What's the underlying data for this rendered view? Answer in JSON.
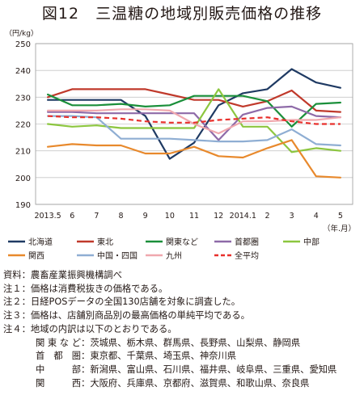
{
  "title": "図12　三温糖の地域別販売価格の推移",
  "chart_data": {
    "type": "line",
    "ylabel": "（円/kg）",
    "xlabel": "（年.月）",
    "ylim": [
      190,
      250
    ],
    "yticks": [
      190,
      200,
      210,
      220,
      230,
      240,
      250
    ],
    "categories": [
      "2013.5",
      "6",
      "7",
      "8",
      "9",
      "10",
      "11",
      "12",
      "2014.1",
      "2",
      "3",
      "4",
      "5"
    ],
    "grid": true,
    "legend_position": "bottom",
    "series": [
      {
        "name": "北海道",
        "color": "#1f3a63",
        "dash": false,
        "values": [
          229,
          229,
          229,
          229,
          223,
          207,
          213,
          227,
          231.5,
          233,
          240.5,
          235.5,
          233.5
        ]
      },
      {
        "name": "東北",
        "color": "#c0392b",
        "dash": false,
        "values": [
          230,
          233,
          233,
          233,
          233,
          231,
          229,
          229,
          226.5,
          228.5,
          232.5,
          225,
          224.5
        ]
      },
      {
        "name": "関東など",
        "color": "#1a8f3a",
        "dash": false,
        "values": [
          231,
          227,
          227,
          227.5,
          226.5,
          227,
          230.5,
          230.5,
          230.5,
          228.5,
          219,
          227.5,
          228
        ]
      },
      {
        "name": "首都圏",
        "color": "#8e6aa8",
        "dash": false,
        "values": [
          224.5,
          224.5,
          224,
          224,
          224,
          224,
          224,
          214,
          223.5,
          226,
          226.5,
          223,
          222.5
        ]
      },
      {
        "name": "中部",
        "color": "#8cc63f",
        "dash": false,
        "values": [
          220,
          219,
          219.5,
          218.5,
          218.5,
          218.5,
          218.5,
          233,
          219,
          219,
          209.5,
          211,
          210
        ]
      },
      {
        "name": "関西",
        "color": "#e8892c",
        "dash": false,
        "values": [
          211.5,
          212.5,
          212,
          212,
          209,
          209,
          211.5,
          208,
          207.5,
          211,
          214,
          200.5,
          200
        ]
      },
      {
        "name": "中国・四国",
        "color": "#8faed3",
        "dash": false,
        "values": [
          223,
          223,
          222.5,
          214.5,
          214.5,
          214.5,
          214,
          213.5,
          213.5,
          214,
          218,
          212.5,
          212
        ]
      },
      {
        "name": "九州",
        "color": "#f0a8ae",
        "dash": false,
        "values": [
          225,
          225,
          225,
          225.5,
          225.5,
          225,
          220,
          216.5,
          221,
          221,
          221.5,
          221.5,
          222.5
        ]
      },
      {
        "name": "全平均",
        "color": "#e8302c",
        "dash": true,
        "values": [
          223,
          222.5,
          222.5,
          222,
          221,
          220.5,
          220.5,
          221.5,
          222,
          222.5,
          221,
          220,
          220
        ]
      }
    ]
  },
  "notes": {
    "source": {
      "label": "資料：",
      "text": "農畜産業振興機構調べ"
    },
    "n1": {
      "label": "注１：",
      "text": "価格は消費税抜きの価格である。"
    },
    "n2": {
      "label": "注２：",
      "text": "日経POSデータの全国130店舗を対象に調査した。"
    },
    "n3": {
      "label": "注３：",
      "text": "価格は、店舗別商品別の最高価格の単純平均である。"
    },
    "n4": {
      "label": "注４：",
      "text": "地域の内訳は以下のとおりである。"
    },
    "regions": [
      {
        "label": "関東など",
        "text": "茨城県、栃木県、群馬県、長野県、山梨県、静岡県"
      },
      {
        "label": "首都圏",
        "text": "東京都、千葉県、埼玉県、神奈川県"
      },
      {
        "label": "中部",
        "text": "新潟県、富山県、石川県、福井県、岐阜県、三重県、愛知県"
      },
      {
        "label": "関西",
        "text": "大阪府、兵庫県、京都府、滋賀県、和歌山県、奈良県"
      }
    ],
    "colon": "："
  }
}
